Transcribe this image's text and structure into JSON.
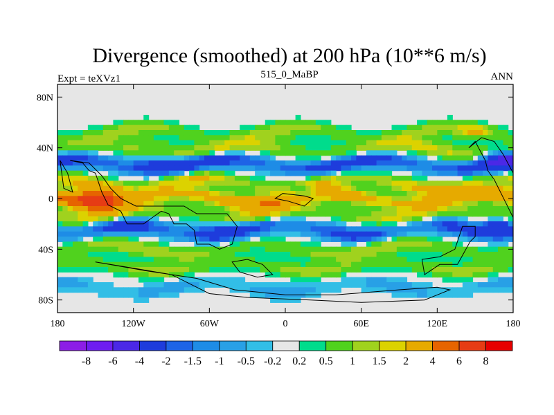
{
  "chart_data": {
    "type": "heatmap",
    "title": "Divergence (smoothed) at 200 hPa (10**6 m/s)",
    "subtitle_left": "Expt = teXVz1",
    "subtitle_center": "515_0_MaBP",
    "subtitle_right": "ANN",
    "x_range": [
      -180,
      180
    ],
    "y_range": [
      -90,
      90
    ],
    "x_ticks": [
      {
        "value": -180,
        "label": "180"
      },
      {
        "value": -120,
        "label": "120W"
      },
      {
        "value": -60,
        "label": "60W"
      },
      {
        "value": 0,
        "label": "0"
      },
      {
        "value": 60,
        "label": "60E"
      },
      {
        "value": 120,
        "label": "120E"
      },
      {
        "value": 180,
        "label": "180"
      }
    ],
    "y_ticks": [
      {
        "value": 80,
        "label": "80N"
      },
      {
        "value": 40,
        "label": "40N"
      },
      {
        "value": 0,
        "label": "0"
      },
      {
        "value": -40,
        "label": "40S"
      },
      {
        "value": -80,
        "label": "80S"
      }
    ],
    "colorbar": {
      "colors": [
        "#8c1ee6",
        "#6e1ef0",
        "#4b28e6",
        "#1e3cdc",
        "#1e64e6",
        "#1e8ce6",
        "#28a0e6",
        "#32bee6",
        "#e6e6e6",
        "#00dc8c",
        "#50d21e",
        "#a0d21e",
        "#dcd200",
        "#e6aa00",
        "#e66400",
        "#e63c14",
        "#e60000"
      ],
      "levels": [
        "-8",
        "-6",
        "-4",
        "-2",
        "-1.5",
        "-1",
        "-0.5",
        "-0.2",
        "0.2",
        "0.5",
        "1",
        "1.5",
        "2",
        "4",
        "6",
        "8"
      ]
    },
    "field_bands": [
      {
        "lat": 70,
        "spread": 5,
        "amp": 0.0
      },
      {
        "lat": 52,
        "spread": 6,
        "amp": 0.9
      },
      {
        "lat": 44,
        "spread": 5,
        "amp": 0.3
      },
      {
        "lat": 38,
        "spread": 6,
        "amp": 1.2
      },
      {
        "lat": 27,
        "spread": 6,
        "amp": -2.3
      },
      {
        "lat": 12,
        "spread": 6,
        "amp": 1.6
      },
      {
        "lat": 0,
        "spread": 6,
        "amp": 3.0
      },
      {
        "lat": -12,
        "spread": 6,
        "amp": 1.3
      },
      {
        "lat": -25,
        "spread": 6,
        "amp": -2.0
      },
      {
        "lat": -40,
        "spread": 6,
        "amp": 1.1
      },
      {
        "lat": -54,
        "spread": 6,
        "amp": 0.9
      },
      {
        "lat": -70,
        "spread": 6,
        "amp": -0.6
      }
    ],
    "field_blobs": [
      {
        "lon": -148,
        "lat": 0,
        "slon": 18,
        "slat": 8,
        "amp": 5.5
      },
      {
        "lon": -95,
        "lat": 28,
        "slon": 25,
        "slat": 7,
        "amp": -1.5
      },
      {
        "lon": 15,
        "lat": 5,
        "slon": 15,
        "slat": 6,
        "amp": -3.0
      },
      {
        "lon": 170,
        "lat": 30,
        "slon": 15,
        "slat": 8,
        "amp": -3.0
      },
      {
        "lon": 170,
        "lat": -22,
        "slon": 12,
        "slat": 6,
        "amp": -3.0
      },
      {
        "lon": -55,
        "lat": -25,
        "slon": 20,
        "slat": 10,
        "amp": -1.0
      },
      {
        "lon": 150,
        "lat": 53,
        "slon": 12,
        "slat": 5,
        "amp": 1.5
      }
    ]
  }
}
